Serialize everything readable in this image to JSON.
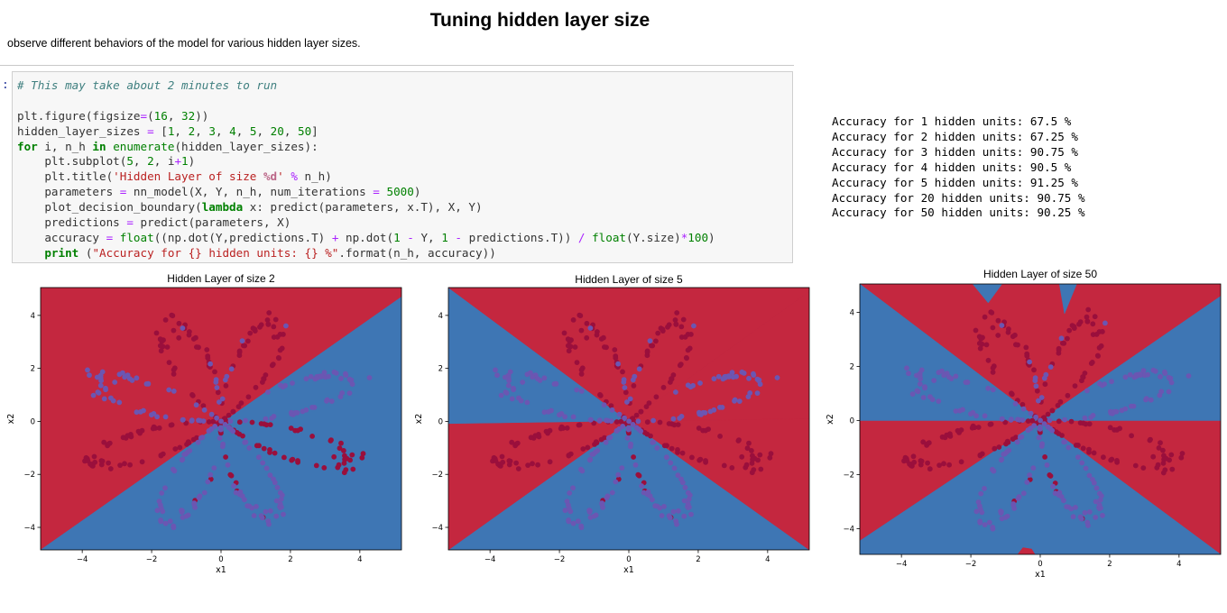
{
  "header": {
    "title": "Tuning hidden layer size",
    "subtitle": "observe different behaviors of the model for various hidden layer sizes."
  },
  "cell": {
    "prompt": ":",
    "code": [
      [
        [
          "cm",
          "# This may take about 2 minutes to run"
        ]
      ],
      [],
      [
        [
          "",
          "plt.figure(figsize"
        ],
        [
          "op",
          "="
        ],
        [
          "",
          "("
        ],
        [
          "nm",
          "16"
        ],
        [
          "",
          ", "
        ],
        [
          "nm",
          "32"
        ],
        [
          "",
          "))"
        ]
      ],
      [
        [
          "",
          "hidden_layer_sizes "
        ],
        [
          "op",
          "="
        ],
        [
          "",
          " ["
        ],
        [
          "nm",
          "1"
        ],
        [
          "",
          ", "
        ],
        [
          "nm",
          "2"
        ],
        [
          "",
          ", "
        ],
        [
          "nm",
          "3"
        ],
        [
          "",
          ", "
        ],
        [
          "nm",
          "4"
        ],
        [
          "",
          ", "
        ],
        [
          "nm",
          "5"
        ],
        [
          "",
          ", "
        ],
        [
          "nm",
          "20"
        ],
        [
          "",
          ", "
        ],
        [
          "nm",
          "50"
        ],
        [
          "",
          "]"
        ]
      ],
      [
        [
          "kw",
          "for"
        ],
        [
          "",
          " i, n_h "
        ],
        [
          "kw",
          "in"
        ],
        [
          "",
          " "
        ],
        [
          "bi",
          "enumerate"
        ],
        [
          "",
          "(hidden_layer_sizes):"
        ]
      ],
      [
        [
          "",
          "    plt.subplot("
        ],
        [
          "nm",
          "5"
        ],
        [
          "",
          ", "
        ],
        [
          "nm",
          "2"
        ],
        [
          "",
          ", i"
        ],
        [
          "op",
          "+"
        ],
        [
          "nm",
          "1"
        ],
        [
          "",
          ")"
        ]
      ],
      [
        [
          "",
          "    plt.title("
        ],
        [
          "st",
          "'Hidden Layer of size "
        ],
        [
          "sp",
          "%d"
        ],
        [
          "st",
          "'"
        ],
        [
          "",
          " "
        ],
        [
          "op",
          "%"
        ],
        [
          "",
          " n_h)"
        ]
      ],
      [
        [
          "",
          "    parameters "
        ],
        [
          "op",
          "="
        ],
        [
          "",
          " nn_model(X, Y, n_h, num_iterations "
        ],
        [
          "op",
          "="
        ],
        [
          "",
          " "
        ],
        [
          "nm",
          "5000"
        ],
        [
          "",
          ")"
        ]
      ],
      [
        [
          "",
          "    plot_decision_boundary("
        ],
        [
          "kw",
          "lambda"
        ],
        [
          "",
          " x: predict(parameters, x.T), X, Y)"
        ]
      ],
      [
        [
          "",
          "    predictions "
        ],
        [
          "op",
          "="
        ],
        [
          "",
          " predict(parameters, X)"
        ]
      ],
      [
        [
          "",
          "    accuracy "
        ],
        [
          "op",
          "="
        ],
        [
          "",
          " "
        ],
        [
          "bi",
          "float"
        ],
        [
          "",
          "((np.dot(Y,predictions.T) "
        ],
        [
          "op",
          "+"
        ],
        [
          "",
          " np.dot("
        ],
        [
          "nm",
          "1"
        ],
        [
          "",
          " "
        ],
        [
          "op",
          "-"
        ],
        [
          "",
          " Y, "
        ],
        [
          "nm",
          "1"
        ],
        [
          "",
          " "
        ],
        [
          "op",
          "-"
        ],
        [
          "",
          " predictions.T)) "
        ],
        [
          "op",
          "/"
        ],
        [
          "",
          " "
        ],
        [
          "bi",
          "float"
        ],
        [
          "",
          "(Y.size)"
        ],
        [
          "op",
          "*"
        ],
        [
          "nm",
          "100"
        ],
        [
          "",
          ")"
        ]
      ],
      [
        [
          "",
          "    "
        ],
        [
          "kw",
          "print"
        ],
        [
          "",
          " ("
        ],
        [
          "st",
          "\"Accuracy for {} hidden units: {} %\""
        ],
        [
          "",
          ".format(n_h, accuracy))"
        ]
      ]
    ]
  },
  "output": {
    "lines": [
      "Accuracy for 1 hidden units: 67.5 %",
      "Accuracy for 2 hidden units: 67.25 %",
      "Accuracy for 3 hidden units: 90.75 %",
      "Accuracy for 4 hidden units: 90.5 %",
      "Accuracy for 5 hidden units: 91.25 %",
      "Accuracy for 20 hidden units: 90.75 %",
      "Accuracy for 50 hidden units: 90.25 %"
    ]
  },
  "colors": {
    "region_red": "#c4273f",
    "region_blue": "#3e76b4",
    "point_red": "#9a0f3c",
    "point_blue": "#6b56b2"
  },
  "chart_data": [
    {
      "type": "scatter",
      "title": "Hidden Layer of size 2",
      "xlabel": "x1",
      "ylabel": "x2",
      "xlim": [
        -5.2,
        5.2
      ],
      "ylim": [
        -4.85,
        5.05
      ],
      "xticks": [
        -4,
        -2,
        0,
        2,
        4
      ],
      "yticks": [
        -4,
        -2,
        0,
        2,
        4
      ],
      "regions": [
        {
          "color": "red",
          "polygon": [
            [
              -5.2,
              5.05
            ],
            [
              5.2,
              5.05
            ],
            [
              5.2,
              4.7
            ],
            [
              -5.2,
              -4.85
            ]
          ]
        },
        {
          "color": "blue",
          "polygon": [
            [
              5.2,
              4.7
            ],
            [
              5.2,
              -4.85
            ],
            [
              -5.2,
              -4.85
            ]
          ]
        }
      ]
    },
    {
      "type": "scatter",
      "title": "Hidden Layer of size 5",
      "xlabel": "x1",
      "ylabel": "x2",
      "xlim": [
        -5.2,
        5.2
      ],
      "ylim": [
        -4.85,
        5.05
      ],
      "xticks": [
        -4,
        -2,
        0,
        2,
        4
      ],
      "yticks": [
        -4,
        -2,
        0,
        2,
        4
      ],
      "regions": [
        {
          "color": "blue",
          "polygon": [
            [
              -5.2,
              5.05
            ],
            [
              -5.2,
              -0.1
            ],
            [
              0,
              0
            ],
            [
              5.2,
              0.1
            ],
            [
              5.2,
              -4.85
            ],
            [
              0,
              0
            ]
          ]
        },
        {
          "color": "blue",
          "polygon": [
            [
              -5.2,
              -4.85
            ],
            [
              5.2,
              -4.85
            ],
            [
              0,
              0
            ]
          ]
        },
        {
          "color": "red",
          "polygon": [
            [
              -5.2,
              5.05
            ],
            [
              5.2,
              5.05
            ],
            [
              5.2,
              4.9
            ],
            [
              0,
              0
            ]
          ]
        },
        {
          "color": "red",
          "polygon": [
            [
              5.2,
              4.9
            ],
            [
              5.2,
              0.1
            ],
            [
              0,
              0
            ]
          ]
        },
        {
          "color": "red",
          "polygon": [
            [
              -5.2,
              -0.1
            ],
            [
              -5.2,
              -4.85
            ],
            [
              0,
              0
            ]
          ]
        },
        {
          "color": "red",
          "polygon": [
            [
              0,
              0
            ],
            [
              5.2,
              0.1
            ],
            [
              5.2,
              -4.85
            ]
          ]
        }
      ]
    },
    {
      "type": "scatter",
      "title": "Hidden Layer of size 50",
      "xlabel": "x1",
      "ylabel": "x2",
      "xlim": [
        -5.2,
        5.2
      ],
      "ylim": [
        -4.95,
        5.05
      ],
      "xticks": [
        -4,
        -2,
        0,
        2,
        4
      ],
      "yticks": [
        -4,
        -2,
        0,
        2,
        4
      ],
      "regions": [
        {
          "color": "red",
          "polygon": [
            [
              -5.2,
              5.05
            ],
            [
              5.2,
              5.05
            ],
            [
              5.2,
              4.6
            ],
            [
              0,
              0
            ]
          ]
        },
        {
          "color": "red",
          "polygon": [
            [
              5.2,
              0.0
            ],
            [
              5.2,
              -4.95
            ],
            [
              0,
              0
            ]
          ]
        },
        {
          "color": "red",
          "polygon": [
            [
              -5.2,
              0.0
            ],
            [
              0,
              0
            ],
            [
              -5.2,
              -4.45
            ]
          ]
        },
        {
          "color": "blue",
          "polygon": [
            [
              -5.2,
              5.05
            ],
            [
              -5.2,
              0.0
            ],
            [
              0,
              0
            ]
          ]
        },
        {
          "color": "blue",
          "polygon": [
            [
              0,
              0
            ],
            [
              5.2,
              4.6
            ],
            [
              5.2,
              0.0
            ]
          ]
        },
        {
          "color": "blue",
          "polygon": [
            [
              -5.2,
              -4.45
            ],
            [
              0,
              0
            ],
            [
              5.2,
              -4.95
            ],
            [
              -5.2,
              -4.95
            ]
          ]
        },
        {
          "color": "blue",
          "polygon": [
            [
              -1.95,
              5.05
            ],
            [
              -1.5,
              4.35
            ],
            [
              -1.1,
              5.05
            ]
          ]
        },
        {
          "color": "blue",
          "polygon": [
            [
              0.55,
              5.05
            ],
            [
              0.7,
              3.95
            ],
            [
              1.05,
              5.05
            ]
          ]
        },
        {
          "color": "red",
          "polygon": [
            [
              -0.65,
              -4.95
            ],
            [
              -0.5,
              -4.7
            ],
            [
              -0.25,
              -4.75
            ],
            [
              -0.15,
              -4.95
            ]
          ]
        }
      ]
    }
  ]
}
